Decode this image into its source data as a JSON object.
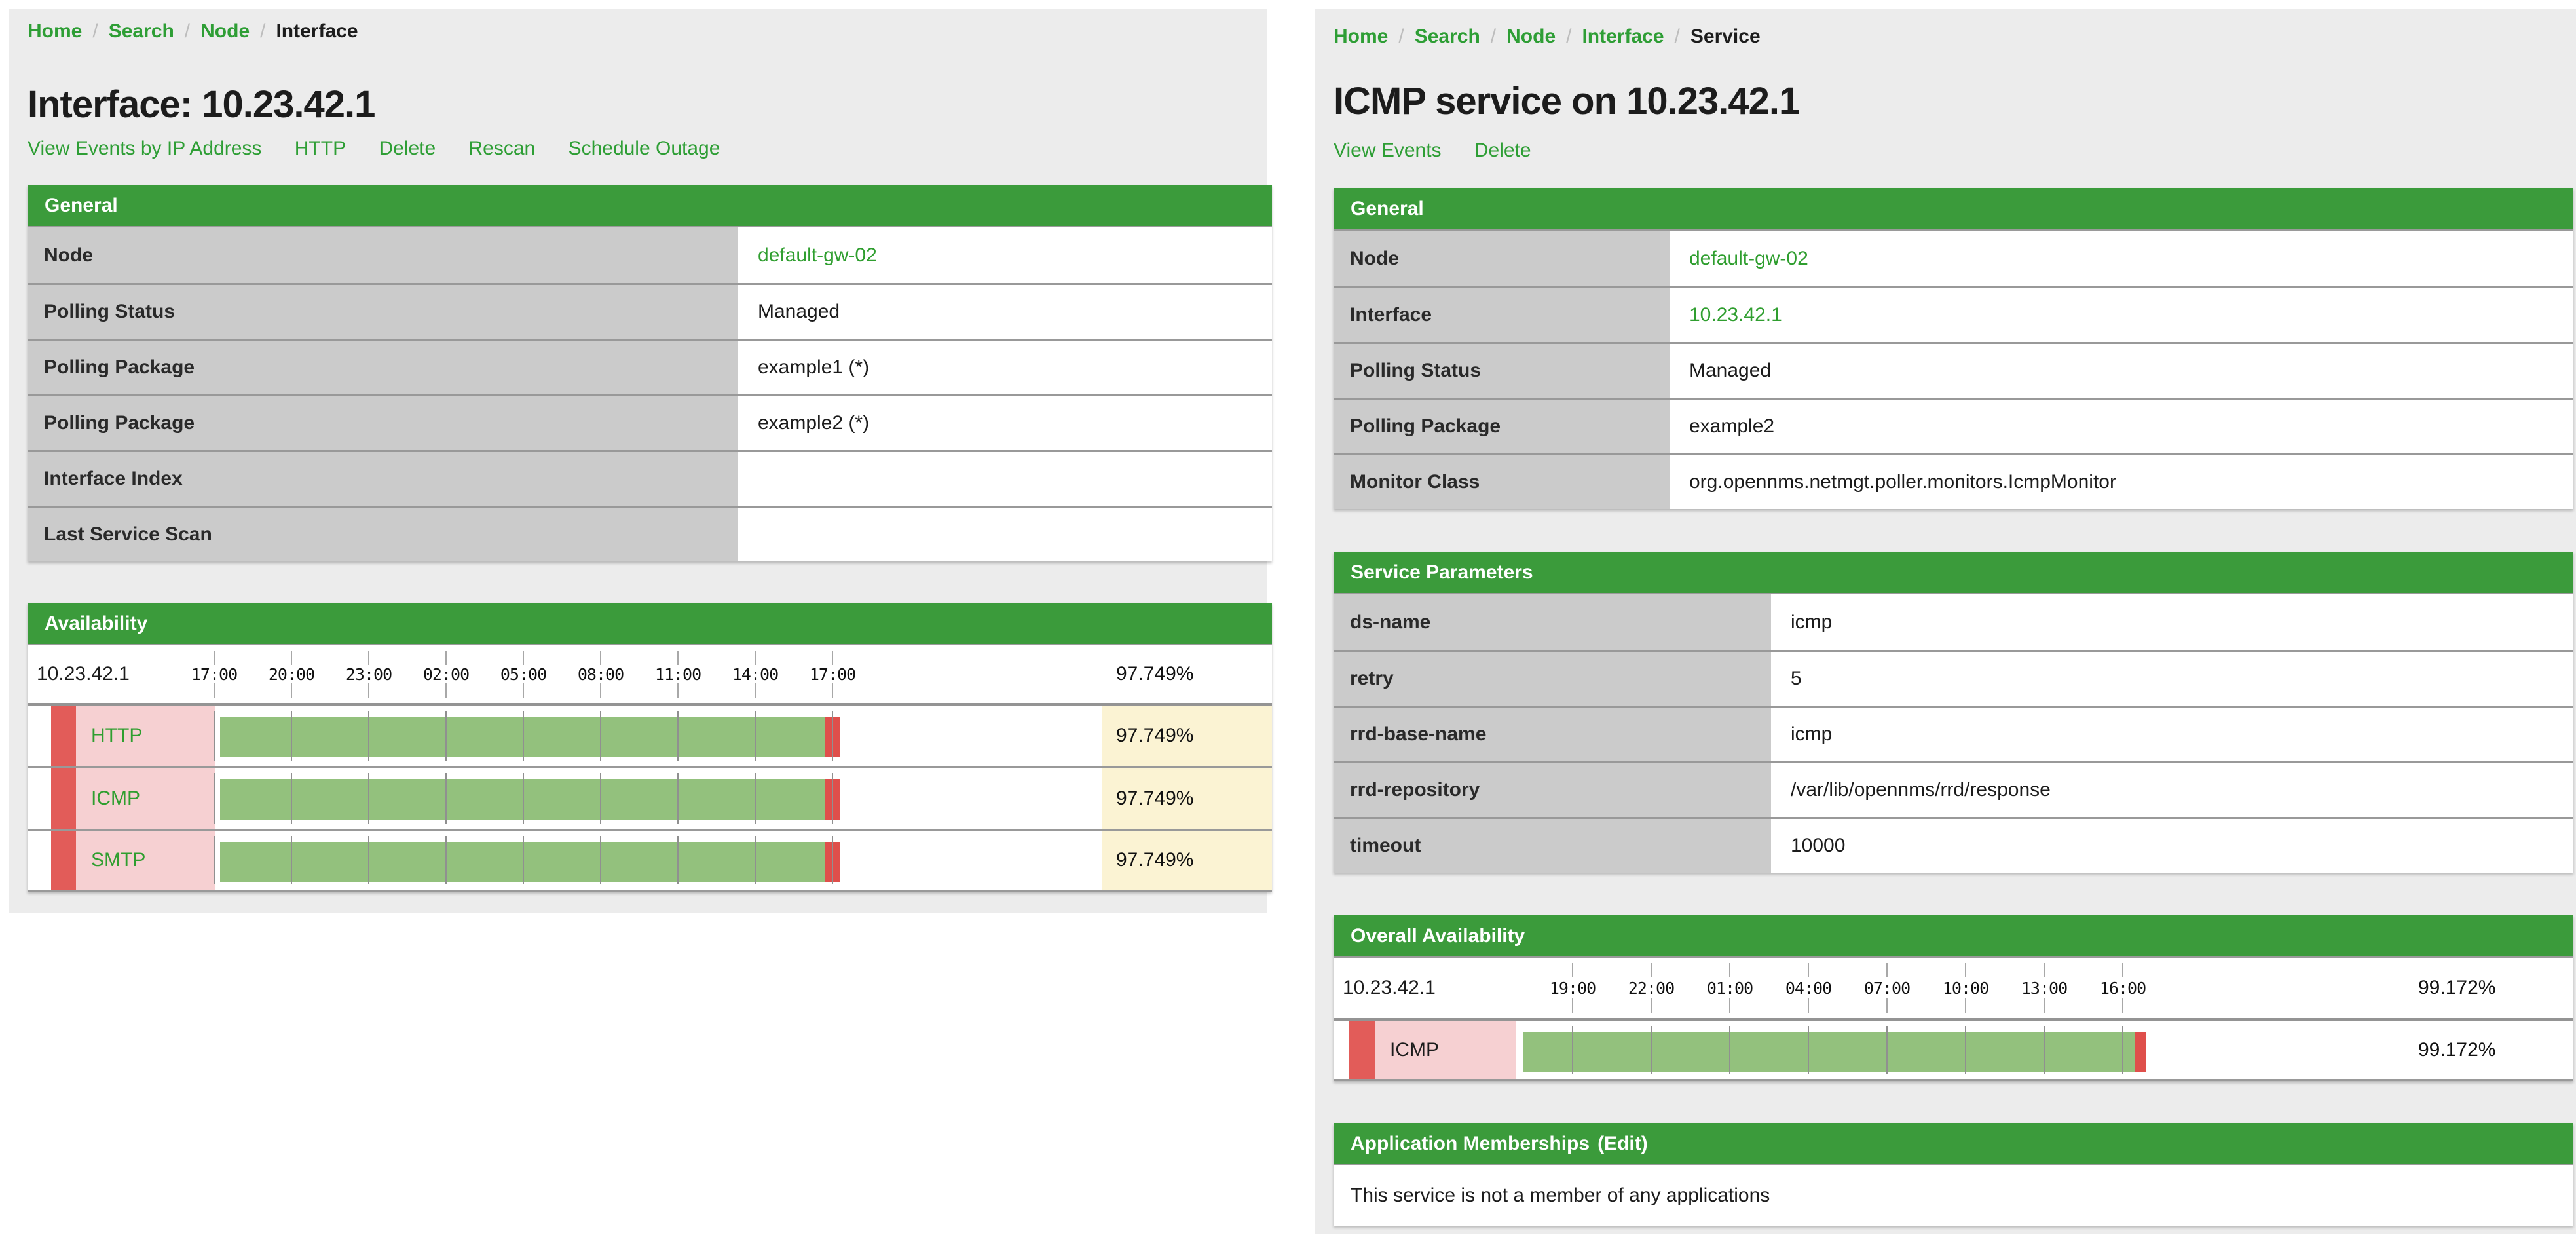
{
  "separator": "/",
  "colors": {
    "header_green": "#3b9b3b",
    "link_green": "#2e9e35",
    "label_gray": "#cbcbcb",
    "panel_gray": "#ececec",
    "status_red": "#e25c59",
    "service_pink": "#f6d0d2",
    "bar_green": "#93c17d",
    "outage_red": "#df4f4b",
    "percent_cream": "#fbf3d3"
  },
  "left": {
    "breadcrumb": {
      "items": [
        "Home",
        "Search",
        "Node",
        "Interface"
      ]
    },
    "title": "Interface: 10.23.42.1",
    "actions": [
      "View Events by IP Address",
      "HTTP",
      "Delete",
      "Rescan",
      "Schedule Outage"
    ],
    "general": {
      "header": "General",
      "rows": [
        {
          "label": "Node",
          "value": "default-gw-02"
        },
        {
          "label": "Polling Status",
          "value": "Managed"
        },
        {
          "label": "Polling Package",
          "value": "example1 (*)"
        },
        {
          "label": "Polling Package",
          "value": "example2 (*)"
        },
        {
          "label": "Interface Index",
          "value": ""
        },
        {
          "label": "Last Service Scan",
          "value": ""
        }
      ]
    },
    "availability": {
      "header": "Availability",
      "ip": "10.23.42.1",
      "overall": "97.749%",
      "ticks": [
        "17:00",
        "20:00",
        "23:00",
        "02:00",
        "05:00",
        "08:00",
        "11:00",
        "14:00",
        "17:00"
      ],
      "services": [
        {
          "name": "HTTP",
          "value": "97.749%"
        },
        {
          "name": "ICMP",
          "value": "97.749%"
        },
        {
          "name": "SMTP",
          "value": "97.749%"
        }
      ]
    }
  },
  "right": {
    "breadcrumb": {
      "items": [
        "Home",
        "Search",
        "Node",
        "Interface",
        "Service"
      ]
    },
    "title": "ICMP service on 10.23.42.1",
    "actions": [
      "View Events",
      "Delete"
    ],
    "general": {
      "header": "General",
      "rows": [
        {
          "label": "Node",
          "value": "default-gw-02"
        },
        {
          "label": "Interface",
          "value": "10.23.42.1"
        },
        {
          "label": "Polling Status",
          "value": "Managed"
        },
        {
          "label": "Polling Package",
          "value": "example2"
        },
        {
          "label": "Monitor Class",
          "value": "org.opennms.netmgt.poller.monitors.IcmpMonitor"
        }
      ]
    },
    "service_parameters": {
      "header": "Service Parameters",
      "rows": [
        {
          "label": "ds-name",
          "value": "icmp"
        },
        {
          "label": "retry",
          "value": "5"
        },
        {
          "label": "rrd-base-name",
          "value": "icmp"
        },
        {
          "label": "rrd-repository",
          "value": "/var/lib/opennms/rrd/response"
        },
        {
          "label": "timeout",
          "value": "10000"
        }
      ]
    },
    "availability": {
      "header": "Overall Availability",
      "ip": "10.23.42.1",
      "overall": "99.172%",
      "ticks": [
        "19:00",
        "22:00",
        "01:00",
        "04:00",
        "07:00",
        "10:00",
        "13:00",
        "16:00"
      ],
      "services": [
        {
          "name": "ICMP",
          "value": "99.172%"
        }
      ]
    },
    "applications": {
      "header": "Application Memberships",
      "edit": "(Edit)",
      "body": "This service is not a member of any applications"
    }
  },
  "chart_data": [
    {
      "type": "area",
      "title": "Availability",
      "subject": "Interface 10.23.42.1",
      "window": "last 24 hours",
      "x_ticks": [
        "17:00",
        "20:00",
        "23:00",
        "02:00",
        "05:00",
        "08:00",
        "11:00",
        "14:00",
        "17:00"
      ],
      "overall_pct": 97.749,
      "series": [
        {
          "name": "HTTP",
          "availability_pct": 97.749,
          "outage_at_end": true
        },
        {
          "name": "ICMP",
          "availability_pct": 97.749,
          "outage_at_end": true
        },
        {
          "name": "SMTP",
          "availability_pct": 97.749,
          "outage_at_end": true
        }
      ]
    },
    {
      "type": "area",
      "title": "Overall Availability",
      "subject": "ICMP service on 10.23.42.1",
      "window": "last 24 hours",
      "x_ticks": [
        "19:00",
        "22:00",
        "01:00",
        "04:00",
        "07:00",
        "10:00",
        "13:00",
        "16:00"
      ],
      "overall_pct": 99.172,
      "series": [
        {
          "name": "ICMP",
          "availability_pct": 99.172,
          "outage_at_end": true
        }
      ]
    }
  ]
}
